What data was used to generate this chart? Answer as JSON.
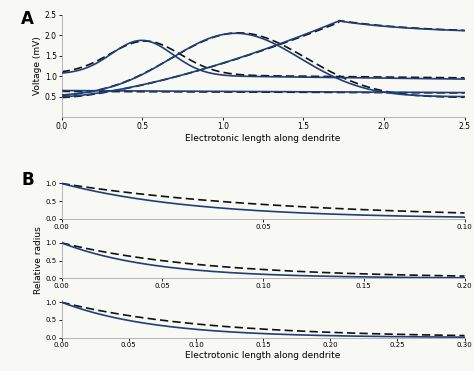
{
  "panel_A": {
    "xlabel": "Electrotonic length along dendrite",
    "ylabel": "Voltage (mV)",
    "xlim": [
      0,
      2.5
    ],
    "ylim": [
      0.0,
      2.5
    ],
    "yticks": [
      0.5,
      1.0,
      1.5,
      2.0,
      2.5
    ],
    "xticks": [
      0,
      0.5,
      1.0,
      1.5,
      2.0,
      2.5
    ],
    "label": "A",
    "solid_color": "#1f3f7a",
    "dashed_color": "#111111"
  },
  "panel_B": {
    "xlabel": "Electrotonic length along dendrite",
    "ylabel": "Relative radius",
    "label": "B",
    "solid_color": "#1f3f7a",
    "dashed_color": "#111111",
    "subplots": [
      {
        "xlim": [
          0,
          0.1
        ],
        "xticks": [
          0,
          0.05,
          0.1
        ],
        "k_solid": 30.0,
        "k_dashed": 18.0
      },
      {
        "xlim": [
          0,
          0.2
        ],
        "xticks": [
          0,
          0.05,
          0.1,
          0.15,
          0.2
        ],
        "k_solid": 22.0,
        "k_dashed": 14.0
      },
      {
        "xlim": [
          0,
          0.3
        ],
        "xticks": [
          0,
          0.05,
          0.1,
          0.15,
          0.2,
          0.25,
          0.3
        ],
        "k_solid": 14.5,
        "k_dashed": 9.5
      }
    ]
  },
  "background_color": "#f8f8f4"
}
